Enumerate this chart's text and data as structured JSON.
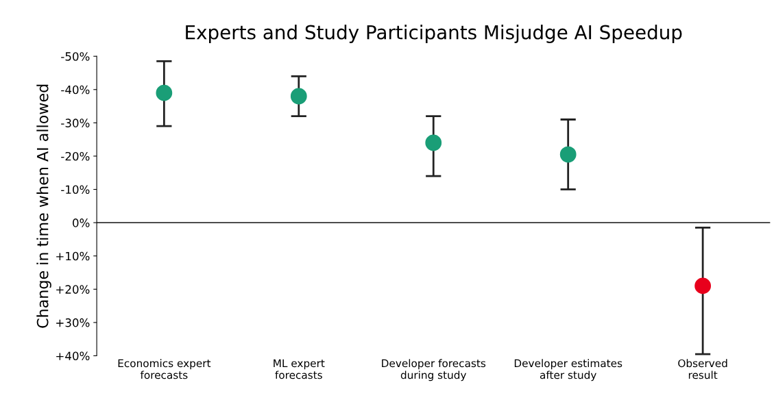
{
  "chart_data": {
    "type": "scatter",
    "title": "Experts and Study Participants Misjudge AI Speedup",
    "ylabel": "Change in time when AI allowed",
    "categories": [
      "Economics expert\nforecasts",
      "ML expert\nforecasts",
      "Developer forecasts\nduring study",
      "Developer estimates\nafter study",
      "Observed\nresult"
    ],
    "values": [
      -39,
      -38,
      -24,
      -20.5,
      19
    ],
    "colors": [
      "#1a9e77",
      "#1a9e77",
      "#1a9e77",
      "#1a9e77",
      "#e8001c"
    ],
    "errors": [
      [
        -48.5,
        -29
      ],
      [
        -44,
        -32
      ],
      [
        -32,
        -14
      ],
      [
        -31,
        -10
      ],
      [
        1.5,
        39.5
      ]
    ],
    "ylim": [
      40,
      -50
    ],
    "yticks": [
      {
        "value": -50,
        "label": "-50%"
      },
      {
        "value": -40,
        "label": "-40%"
      },
      {
        "value": -30,
        "label": "-30%"
      },
      {
        "value": -20,
        "label": "-20%"
      },
      {
        "value": -10,
        "label": "-10%"
      },
      {
        "value": 0,
        "label": "0%"
      },
      {
        "value": 10,
        "label": "+10%"
      },
      {
        "value": 20,
        "label": "+20%"
      },
      {
        "value": 30,
        "label": "+30%"
      },
      {
        "value": 40,
        "label": "+40%"
      }
    ],
    "ref_lines": [
      {
        "axis": "y",
        "value": 0,
        "color": "#333333"
      }
    ],
    "marker": "circle",
    "grid": false,
    "legend": false
  }
}
